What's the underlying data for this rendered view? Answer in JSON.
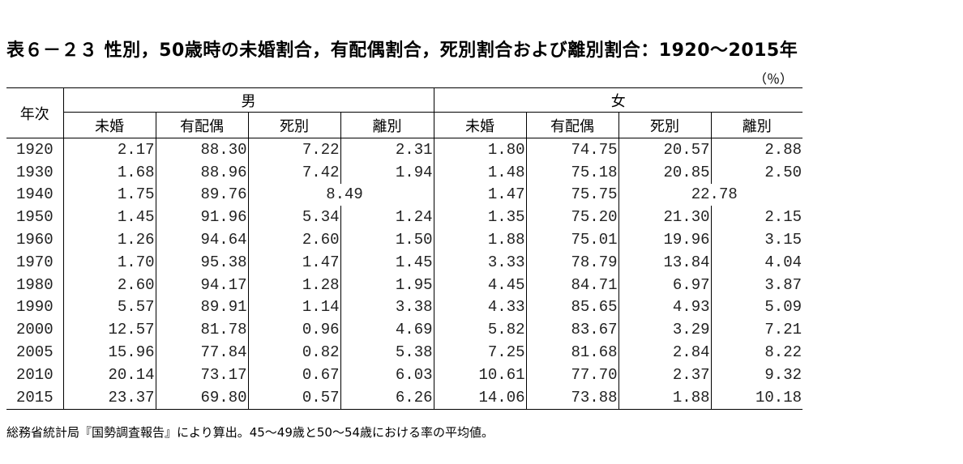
{
  "title": "表６－２３ 性別，50歳時の未婚割合，有配偶割合，死別割合および離別割合：1920～2015年",
  "unit": "（％）",
  "headers": {
    "year": "年次",
    "male": "男",
    "female": "女",
    "sub": [
      "未婚",
      "有配偶",
      "死別",
      "離別"
    ]
  },
  "rows": [
    {
      "year": "1920",
      "male": [
        "2.17",
        "88.30",
        "7.22",
        "2.31"
      ],
      "female": [
        "1.80",
        "74.75",
        "20.57",
        "2.88"
      ]
    },
    {
      "year": "1930",
      "male": [
        "1.68",
        "88.96",
        "7.42",
        "1.94"
      ],
      "female": [
        "1.48",
        "75.18",
        "20.85",
        "2.50"
      ]
    },
    {
      "year": "1940",
      "male": [
        "1.75",
        "89.76",
        "8.49"
      ],
      "female": [
        "1.47",
        "75.75",
        "22.78"
      ],
      "merged_widowed_divorced": true
    },
    {
      "year": "1950",
      "male": [
        "1.45",
        "91.96",
        "5.34",
        "1.24"
      ],
      "female": [
        "1.35",
        "75.20",
        "21.30",
        "2.15"
      ]
    },
    {
      "year": "1960",
      "male": [
        "1.26",
        "94.64",
        "2.60",
        "1.50"
      ],
      "female": [
        "1.88",
        "75.01",
        "19.96",
        "3.15"
      ]
    },
    {
      "year": "1970",
      "male": [
        "1.70",
        "95.38",
        "1.47",
        "1.45"
      ],
      "female": [
        "3.33",
        "78.79",
        "13.84",
        "4.04"
      ]
    },
    {
      "year": "1980",
      "male": [
        "2.60",
        "94.17",
        "1.28",
        "1.95"
      ],
      "female": [
        "4.45",
        "84.71",
        "6.97",
        "3.87"
      ]
    },
    {
      "year": "1990",
      "male": [
        "5.57",
        "89.91",
        "1.14",
        "3.38"
      ],
      "female": [
        "4.33",
        "85.65",
        "4.93",
        "5.09"
      ]
    },
    {
      "year": "2000",
      "male": [
        "12.57",
        "81.78",
        "0.96",
        "4.69"
      ],
      "female": [
        "5.82",
        "83.67",
        "3.29",
        "7.21"
      ]
    },
    {
      "year": "2005",
      "male": [
        "15.96",
        "77.84",
        "0.82",
        "5.38"
      ],
      "female": [
        "7.25",
        "81.68",
        "2.84",
        "8.22"
      ]
    },
    {
      "year": "2010",
      "male": [
        "20.14",
        "73.17",
        "0.67",
        "6.03"
      ],
      "female": [
        "10.61",
        "77.70",
        "2.37",
        "9.32"
      ]
    },
    {
      "year": "2015",
      "male": [
        "23.37",
        "69.80",
        "0.57",
        "6.26"
      ],
      "female": [
        "14.06",
        "73.88",
        "1.88",
        "10.18"
      ]
    }
  ],
  "note": "総務省統計局『国勢調査報告』により算出。45～49歳と50～54歳における率の平均値。"
}
